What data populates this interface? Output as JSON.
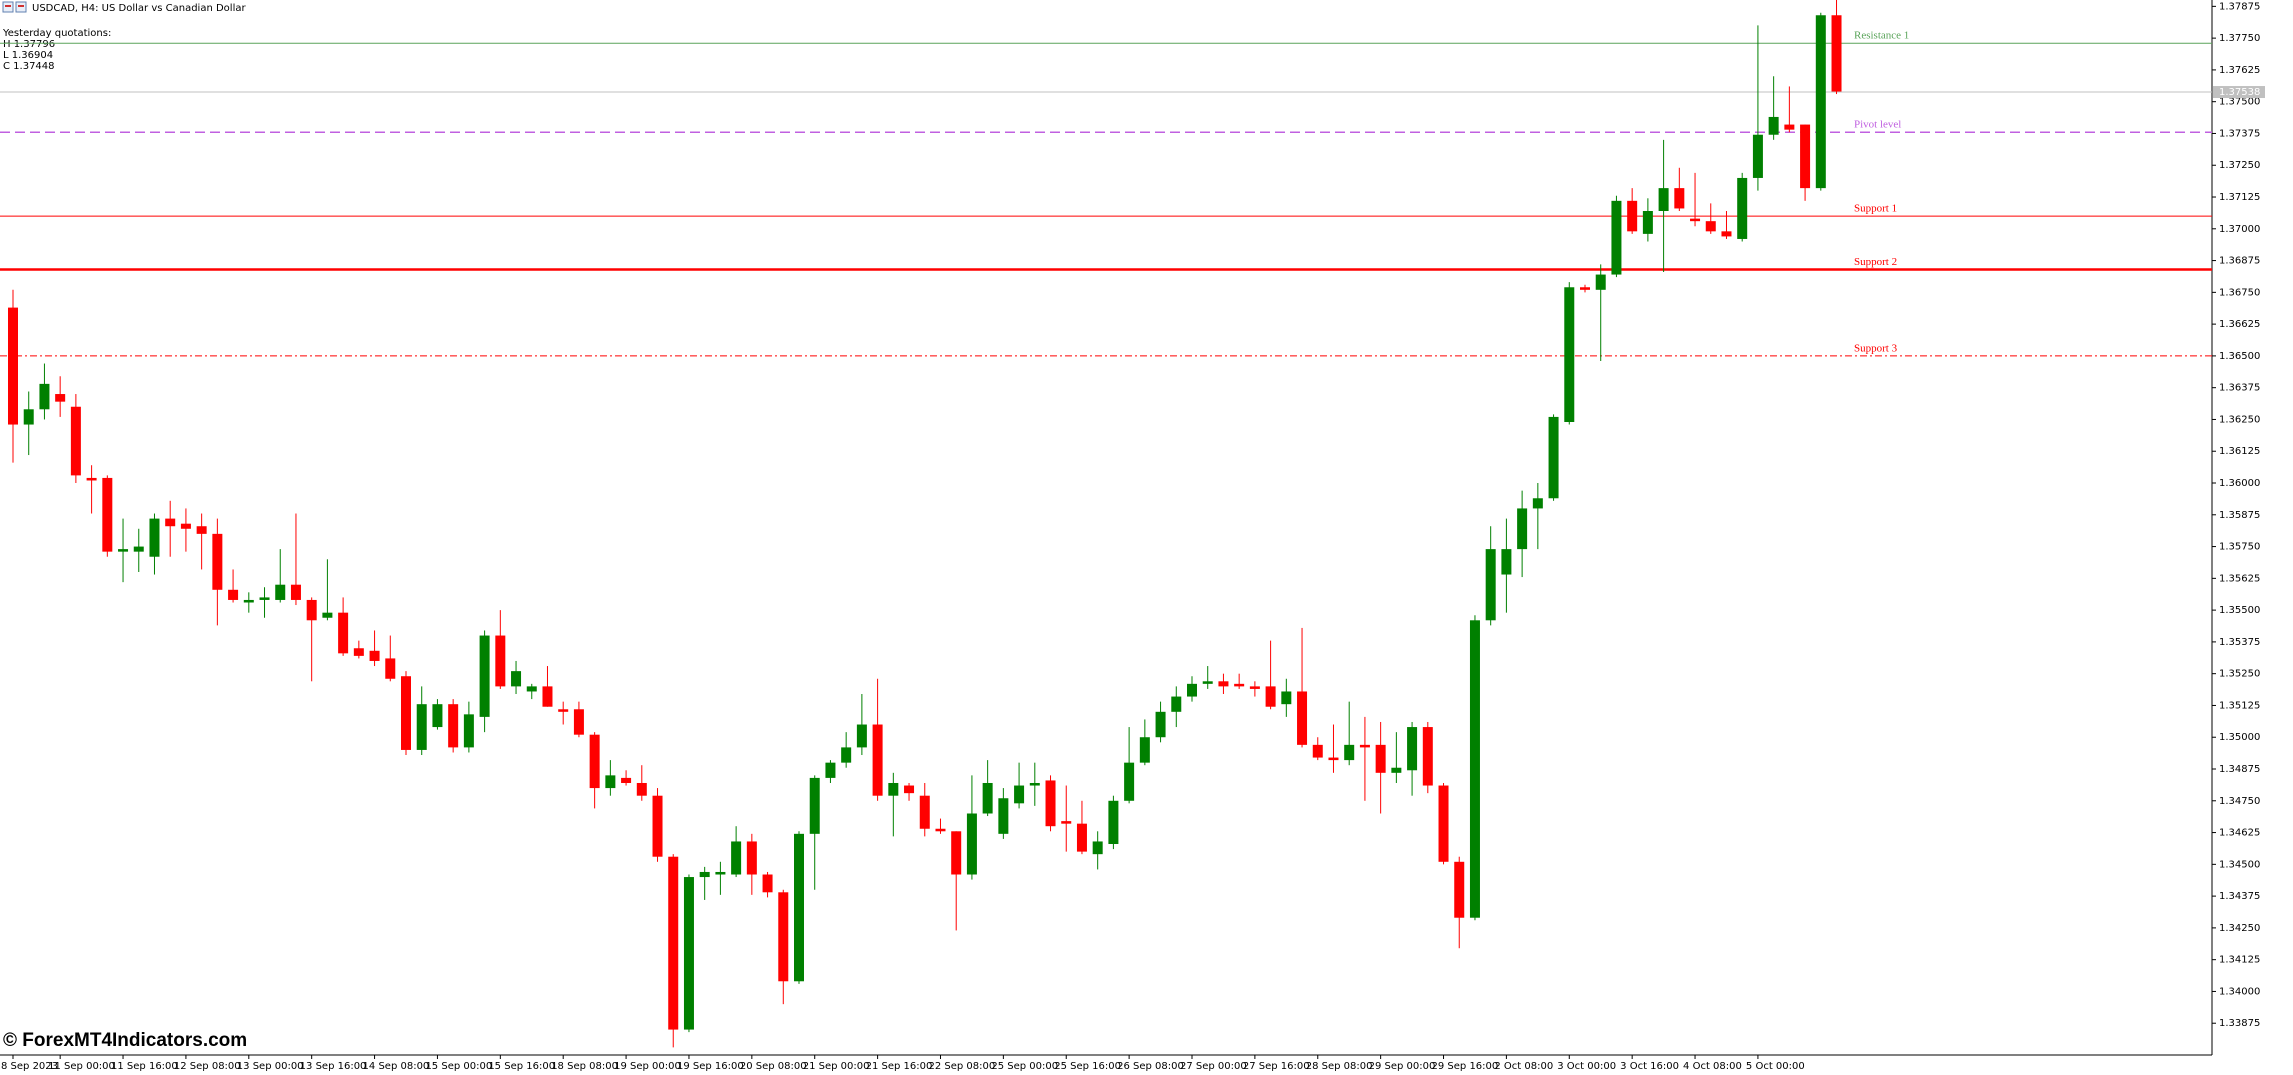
{
  "chart_data": {
    "type": "candlestick",
    "title": "USDCAD, H4:  US Dollar vs Canadian Dollar",
    "annotations": [
      "Yesterday quotations:",
      "H 1.37796",
      "L 1.36904",
      "C 1.37448"
    ],
    "watermark": "© ForexMT4Indicators.com",
    "up_color": "#008000",
    "down_color": "#ff0000",
    "grid": false,
    "categories": [
      "8 Sep 2023",
      null,
      null,
      "11 Sep 00:00",
      null,
      null,
      null,
      "11 Sep 16:00",
      null,
      null,
      null,
      "12 Sep 08:00",
      null,
      null,
      null,
      "13 Sep 00:00",
      null,
      null,
      null,
      "13 Sep 16:00",
      null,
      null,
      null,
      "14 Sep 08:00",
      null,
      null,
      null,
      "15 Sep 00:00",
      null,
      null,
      null,
      "15 Sep 16:00",
      null,
      null,
      null,
      "18 Sep 08:00",
      null,
      null,
      null,
      "19 Sep 00:00",
      null,
      null,
      null,
      "19 Sep 16:00",
      null,
      null,
      null,
      "20 Sep 08:00",
      null,
      null,
      null,
      "21 Sep 00:00",
      null,
      null,
      null,
      "21 Sep 16:00",
      null,
      null,
      null,
      "22 Sep 08:00",
      null,
      null,
      null,
      "25 Sep 00:00",
      null,
      null,
      null,
      "25 Sep 16:00",
      null,
      null,
      null,
      "26 Sep 08:00",
      null,
      null,
      null,
      "27 Sep 00:00",
      null,
      null,
      null,
      "27 Sep 16:00",
      null,
      null,
      null,
      "28 Sep 08:00",
      null,
      null,
      null,
      "29 Sep 00:00",
      null,
      null,
      null,
      "29 Sep 16:00",
      null,
      null,
      null,
      "2 Oct 08:00",
      null,
      null,
      null,
      "3 Oct 00:00",
      null,
      null,
      null,
      "3 Oct 16:00",
      null,
      null,
      null,
      "4 Oct 08:00",
      null,
      null,
      null,
      "5 Oct 00:00",
      null,
      null,
      null,
      null,
      null
    ],
    "open": [
      1.3669,
      1.3623,
      1.3629,
      1.3635,
      1.363,
      1.3602,
      1.3602,
      1.3573,
      1.3573,
      1.3571,
      1.3586,
      1.3584,
      1.3583,
      1.358,
      1.3558,
      1.3553,
      1.3554,
      1.3554,
      1.356,
      1.3554,
      1.3547,
      1.3549,
      1.3535,
      1.3534,
      1.3531,
      1.3524,
      1.3495,
      1.3504,
      1.3513,
      1.3496,
      1.3508,
      1.354,
      1.352,
      1.3518,
      1.352,
      1.3511,
      1.3511,
      1.3501,
      1.348,
      1.3484,
      1.3482,
      1.3477,
      1.3453,
      1.3385,
      1.3445,
      1.3446,
      1.3446,
      1.3459,
      1.3446,
      1.3439,
      1.3404,
      1.3462,
      1.3484,
      1.349,
      1.3496,
      1.3505,
      1.3477,
      1.3481,
      1.3477,
      1.3464,
      1.3463,
      1.3446,
      1.347,
      1.3462,
      1.3474,
      1.3481,
      1.3483,
      1.3467,
      1.3466,
      1.3454,
      1.3458,
      1.3475,
      1.349,
      1.35,
      1.351,
      1.3516,
      1.3521,
      1.3522,
      1.3521,
      1.352,
      1.352,
      1.3513,
      1.3518,
      1.3497,
      1.3492,
      1.3491,
      1.3497,
      1.3497,
      1.3486,
      1.3487,
      1.3504,
      1.3481,
      1.3451,
      1.3429,
      1.3546,
      1.3564,
      1.3574,
      1.359,
      1.3594,
      1.3624,
      1.3677,
      1.3676,
      1.3682,
      1.3711,
      1.3698,
      1.3707,
      1.3716,
      1.3704,
      1.3703,
      1.3699,
      1.3696,
      1.372,
      1.3737,
      1.3741,
      1.3741,
      1.3716,
      1.3784
    ],
    "high": [
      1.3676,
      1.3636,
      1.3647,
      1.3642,
      1.3635,
      1.3607,
      1.3603,
      1.3586,
      1.3582,
      1.3588,
      1.3593,
      1.359,
      1.3588,
      1.3586,
      1.3566,
      1.3557,
      1.3559,
      1.3574,
      1.3588,
      1.3555,
      1.357,
      1.3555,
      1.3538,
      1.3542,
      1.354,
      1.3526,
      1.352,
      1.3515,
      1.3515,
      1.3514,
      1.3542,
      1.355,
      1.353,
      1.3521,
      1.3528,
      1.3514,
      1.3514,
      1.3502,
      1.3491,
      1.3487,
      1.3489,
      1.348,
      1.3454,
      1.3446,
      1.3449,
      1.3451,
      1.3465,
      1.3462,
      1.3447,
      1.344,
      1.3463,
      1.3485,
      1.3491,
      1.3502,
      1.3517,
      1.3523,
      1.3486,
      1.3482,
      1.3482,
      1.3468,
      1.3463,
      1.3485,
      1.3491,
      1.348,
      1.349,
      1.349,
      1.3485,
      1.3481,
      1.3475,
      1.3463,
      1.3477,
      1.3504,
      1.3507,
      1.3514,
      1.352,
      1.3524,
      1.3528,
      1.3525,
      1.3525,
      1.3522,
      1.3538,
      1.3523,
      1.3543,
      1.35,
      1.3505,
      1.3514,
      1.3508,
      1.3506,
      1.3502,
      1.3506,
      1.3506,
      1.3482,
      1.3453,
      1.3548,
      1.3583,
      1.3586,
      1.3597,
      1.36,
      1.3627,
      1.3679,
      1.3678,
      1.3686,
      1.3713,
      1.3716,
      1.3712,
      1.3735,
      1.3724,
      1.3722,
      1.371,
      1.3707,
      1.3722,
      1.378,
      1.376,
      1.3756,
      1.3741,
      1.3785,
      1.379
    ],
    "low": [
      1.3608,
      1.3611,
      1.3625,
      1.3626,
      1.36,
      1.3588,
      1.3571,
      1.3561,
      1.3565,
      1.3564,
      1.3571,
      1.3573,
      1.3566,
      1.3544,
      1.3553,
      1.3549,
      1.3547,
      1.3553,
      1.3552,
      1.3522,
      1.3546,
      1.3532,
      1.3531,
      1.3528,
      1.3522,
      1.3493,
      1.3493,
      1.3503,
      1.3494,
      1.3494,
      1.3502,
      1.3519,
      1.3517,
      1.3515,
      1.3512,
      1.3505,
      1.35,
      1.3472,
      1.3477,
      1.3481,
      1.3475,
      1.3451,
      1.3378,
      1.3384,
      1.3436,
      1.3438,
      1.3445,
      1.3438,
      1.3437,
      1.3395,
      1.3403,
      1.344,
      1.3482,
      1.3488,
      1.3493,
      1.3475,
      1.3461,
      1.3475,
      1.3461,
      1.3462,
      1.3424,
      1.3444,
      1.3469,
      1.346,
      1.3472,
      1.3473,
      1.3463,
      1.3455,
      1.3454,
      1.3448,
      1.3456,
      1.3474,
      1.3489,
      1.3498,
      1.3504,
      1.3514,
      1.3519,
      1.3517,
      1.3519,
      1.3516,
      1.3511,
      1.3508,
      1.3496,
      1.3491,
      1.3486,
      1.3489,
      1.3475,
      1.347,
      1.3482,
      1.3477,
      1.3478,
      1.345,
      1.3417,
      1.3428,
      1.3544,
      1.3549,
      1.3563,
      1.3574,
      1.3593,
      1.3623,
      1.3675,
      1.3648,
      1.3681,
      1.3698,
      1.3695,
      1.3683,
      1.3707,
      1.3701,
      1.3698,
      1.3696,
      1.3695,
      1.3715,
      1.3735,
      1.3738,
      1.3711,
      1.3715,
      1.3753
    ],
    "close": [
      1.3623,
      1.3629,
      1.3639,
      1.3632,
      1.3603,
      1.3601,
      1.3573,
      1.3574,
      1.3575,
      1.3586,
      1.3583,
      1.3582,
      1.358,
      1.3558,
      1.3554,
      1.3554,
      1.3555,
      1.356,
      1.3554,
      1.3546,
      1.3549,
      1.3533,
      1.3532,
      1.353,
      1.3523,
      1.3495,
      1.3513,
      1.3513,
      1.3496,
      1.3509,
      1.354,
      1.352,
      1.3526,
      1.352,
      1.3512,
      1.351,
      1.3501,
      1.348,
      1.3485,
      1.3482,
      1.3477,
      1.3453,
      1.3385,
      1.3445,
      1.3447,
      1.3447,
      1.3459,
      1.3446,
      1.3439,
      1.3404,
      1.3462,
      1.3484,
      1.349,
      1.3496,
      1.3505,
      1.3477,
      1.3482,
      1.3478,
      1.3464,
      1.3463,
      1.3446,
      1.347,
      1.3482,
      1.3476,
      1.3481,
      1.3482,
      1.3465,
      1.3466,
      1.3455,
      1.3459,
      1.3475,
      1.349,
      1.35,
      1.351,
      1.3516,
      1.3521,
      1.3522,
      1.352,
      1.352,
      1.3519,
      1.3512,
      1.3518,
      1.3497,
      1.3492,
      1.3491,
      1.3497,
      1.3496,
      1.3486,
      1.3488,
      1.3504,
      1.3481,
      1.3451,
      1.3429,
      1.3546,
      1.3574,
      1.3574,
      1.359,
      1.3594,
      1.3626,
      1.3677,
      1.3676,
      1.3682,
      1.3711,
      1.3699,
      1.3707,
      1.3716,
      1.3708,
      1.3703,
      1.3699,
      1.3697,
      1.372,
      1.3737,
      1.3744,
      1.3739,
      1.3716,
      1.3784,
      1.3754
    ],
    "ylim": [
      1.3375,
      1.379
    ],
    "yticks": [
      1.37875,
      {
        "value": 1.3775,
        "label": "1.37750"
      },
      1.37625,
      {
        "value": 1.375,
        "label": "1.37500"
      },
      1.37375,
      {
        "value": 1.3725,
        "label": "1.37250"
      },
      1.37125,
      {
        "value": 1.37,
        "label": "1.37000"
      },
      1.36875,
      {
        "value": 1.3675,
        "label": "1.36750"
      },
      1.36625,
      {
        "value": 1.365,
        "label": "1.36500"
      },
      1.36375,
      {
        "value": 1.3625,
        "label": "1.36250"
      },
      1.36125,
      {
        "value": 1.36,
        "label": "1.36000"
      },
      1.35875,
      {
        "value": 1.3575,
        "label": "1.35750"
      },
      1.35625,
      {
        "value": 1.355,
        "label": "1.35500"
      },
      1.35375,
      {
        "value": 1.3525,
        "label": "1.35250"
      },
      1.35125,
      {
        "value": 1.35,
        "label": "1.35000"
      },
      1.34875,
      {
        "value": 1.3475,
        "label": "1.34750"
      },
      1.34625,
      {
        "value": 1.345,
        "label": "1.34500"
      },
      1.34375,
      {
        "value": 1.3425,
        "label": "1.34250"
      },
      1.34125,
      {
        "value": 1.34,
        "label": "1.34000"
      },
      1.33875
    ],
    "last_price": 1.37538,
    "levels": [
      {
        "name": "Resistance 1",
        "value": 1.3773,
        "color": "#5aa45a",
        "style": "solid"
      },
      {
        "name": "Pivot level",
        "value": 1.3738,
        "color": "#c060e0",
        "style": "dashed"
      },
      {
        "name": "Support 1",
        "value": 1.3705,
        "color": "#ff0000",
        "style": "solid"
      },
      {
        "name": "Support 2",
        "value": 1.3684,
        "color": "#ff0000",
        "style": "bold"
      },
      {
        "name": "Support 3",
        "value": 1.365,
        "color": "#ff0000",
        "style": "dash-dot"
      }
    ]
  }
}
